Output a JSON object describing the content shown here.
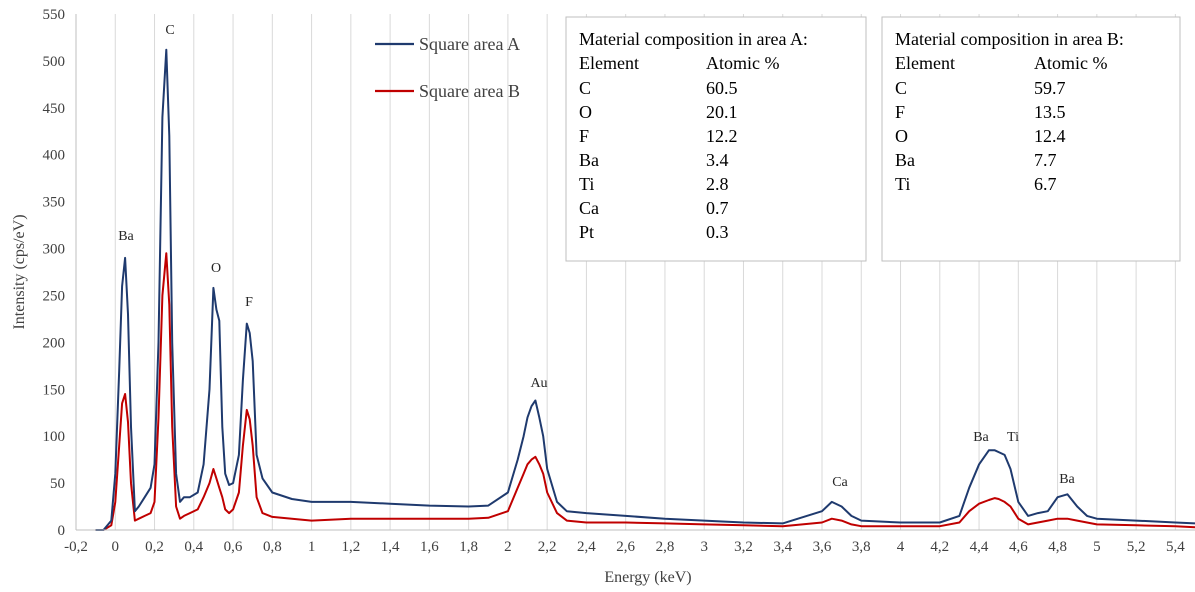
{
  "chart_data": {
    "type": "line",
    "xlabel": "Energy (keV)",
    "ylabel": "Intensity (cps/eV)",
    "xlim": [
      -0.2,
      5.5
    ],
    "ylim": [
      0,
      550
    ],
    "x_ticks": [
      "-0,2",
      "0",
      "0,2",
      "0,4",
      "0,6",
      "0,8",
      "1",
      "1,2",
      "1,4",
      "1,6",
      "1,8",
      "2",
      "2,2",
      "2,4",
      "2,6",
      "2,8",
      "3",
      "3,2",
      "3,4",
      "3,6",
      "3,8",
      "4",
      "4,2",
      "4,4",
      "4,6",
      "4,8",
      "5",
      "5,2",
      "5,4"
    ],
    "y_ticks": [
      "0",
      "50",
      "100",
      "150",
      "200",
      "250",
      "300",
      "350",
      "400",
      "450",
      "500",
      "550"
    ],
    "grid": "vertical",
    "legend_position": "top-center",
    "series": [
      {
        "name": "Square area A",
        "color": "#1f3a6e",
        "x": [
          -0.1,
          -0.06,
          -0.02,
          0.0,
          0.02,
          0.035,
          0.05,
          0.065,
          0.08,
          0.1,
          0.12,
          0.15,
          0.18,
          0.2,
          0.22,
          0.24,
          0.26,
          0.275,
          0.29,
          0.31,
          0.33,
          0.35,
          0.38,
          0.42,
          0.45,
          0.48,
          0.5,
          0.515,
          0.53,
          0.545,
          0.56,
          0.58,
          0.6,
          0.63,
          0.65,
          0.67,
          0.685,
          0.7,
          0.72,
          0.75,
          0.8,
          0.9,
          1.0,
          1.2,
          1.4,
          1.6,
          1.8,
          1.9,
          2.0,
          2.05,
          2.08,
          2.1,
          2.12,
          2.14,
          2.16,
          2.18,
          2.2,
          2.25,
          2.3,
          2.4,
          2.6,
          2.8,
          3.0,
          3.2,
          3.4,
          3.6,
          3.65,
          3.7,
          3.75,
          3.8,
          4.0,
          4.2,
          4.3,
          4.35,
          4.4,
          4.45,
          4.48,
          4.5,
          4.53,
          4.56,
          4.6,
          4.65,
          4.7,
          4.75,
          4.8,
          4.85,
          4.9,
          4.95,
          5.0,
          5.2,
          5.4,
          5.5
        ],
        "y": [
          0,
          0,
          10,
          60,
          170,
          260,
          290,
          230,
          110,
          20,
          25,
          35,
          45,
          70,
          200,
          440,
          512,
          420,
          200,
          60,
          30,
          35,
          35,
          40,
          70,
          150,
          258,
          235,
          223,
          110,
          60,
          48,
          50,
          80,
          160,
          220,
          210,
          180,
          80,
          55,
          40,
          33,
          30,
          30,
          28,
          26,
          25,
          26,
          40,
          75,
          100,
          120,
          132,
          138,
          120,
          100,
          65,
          30,
          20,
          18,
          15,
          12,
          10,
          8,
          7,
          20,
          30,
          25,
          15,
          10,
          8,
          8,
          15,
          45,
          70,
          85,
          85,
          83,
          80,
          65,
          30,
          15,
          18,
          20,
          35,
          38,
          25,
          15,
          12,
          10,
          8,
          7
        ]
      },
      {
        "name": "Square area B",
        "color": "#c00000",
        "x": [
          -0.1,
          -0.06,
          -0.02,
          0.0,
          0.02,
          0.035,
          0.05,
          0.065,
          0.08,
          0.1,
          0.12,
          0.15,
          0.18,
          0.2,
          0.22,
          0.24,
          0.26,
          0.275,
          0.29,
          0.31,
          0.33,
          0.35,
          0.38,
          0.42,
          0.45,
          0.48,
          0.5,
          0.515,
          0.53,
          0.545,
          0.56,
          0.58,
          0.6,
          0.63,
          0.65,
          0.67,
          0.685,
          0.7,
          0.72,
          0.75,
          0.8,
          0.9,
          1.0,
          1.2,
          1.4,
          1.6,
          1.8,
          1.9,
          2.0,
          2.05,
          2.08,
          2.1,
          2.12,
          2.14,
          2.16,
          2.18,
          2.2,
          2.25,
          2.3,
          2.4,
          2.6,
          2.8,
          3.0,
          3.2,
          3.4,
          3.6,
          3.65,
          3.7,
          3.75,
          3.8,
          4.0,
          4.2,
          4.3,
          4.35,
          4.4,
          4.45,
          4.48,
          4.5,
          4.53,
          4.56,
          4.6,
          4.65,
          4.7,
          4.75,
          4.8,
          4.85,
          4.9,
          4.95,
          5.0,
          5.2,
          5.4,
          5.5
        ],
        "y": [
          0,
          0,
          5,
          30,
          90,
          135,
          145,
          115,
          50,
          10,
          12,
          15,
          18,
          30,
          120,
          250,
          295,
          240,
          110,
          25,
          12,
          15,
          18,
          22,
          35,
          50,
          65,
          55,
          45,
          35,
          22,
          18,
          22,
          40,
          90,
          128,
          118,
          90,
          35,
          18,
          14,
          12,
          10,
          12,
          12,
          12,
          12,
          13,
          20,
          45,
          60,
          70,
          75,
          78,
          70,
          60,
          40,
          18,
          10,
          8,
          8,
          7,
          6,
          5,
          4,
          8,
          12,
          10,
          6,
          4,
          4,
          4,
          8,
          20,
          28,
          32,
          34,
          33,
          30,
          25,
          12,
          6,
          8,
          10,
          12,
          12,
          10,
          8,
          6,
          5,
          4,
          3
        ]
      }
    ],
    "peak_labels": [
      "Ba",
      "C",
      "O",
      "F",
      "Au",
      "Ca",
      "Ba",
      "Ti",
      "Ba"
    ],
    "tables": [
      {
        "title": "Material composition in area A:",
        "col1": "Element",
        "col2": "Atomic %",
        "rows": [
          [
            "C",
            "60.5"
          ],
          [
            "O",
            "20.1"
          ],
          [
            "F",
            "12.2"
          ],
          [
            "Ba",
            "3.4"
          ],
          [
            "Ti",
            "2.8"
          ],
          [
            "Ca",
            "0.7"
          ],
          [
            "Pt",
            "0.3"
          ]
        ]
      },
      {
        "title": "Material composition in area B:",
        "col1": "Element",
        "col2": "Atomic %",
        "rows": [
          [
            "C",
            "59.7"
          ],
          [
            "F",
            "13.5"
          ],
          [
            "O",
            "12.4"
          ],
          [
            "Ba",
            "7.7"
          ],
          [
            "Ti",
            "6.7"
          ]
        ]
      }
    ]
  }
}
